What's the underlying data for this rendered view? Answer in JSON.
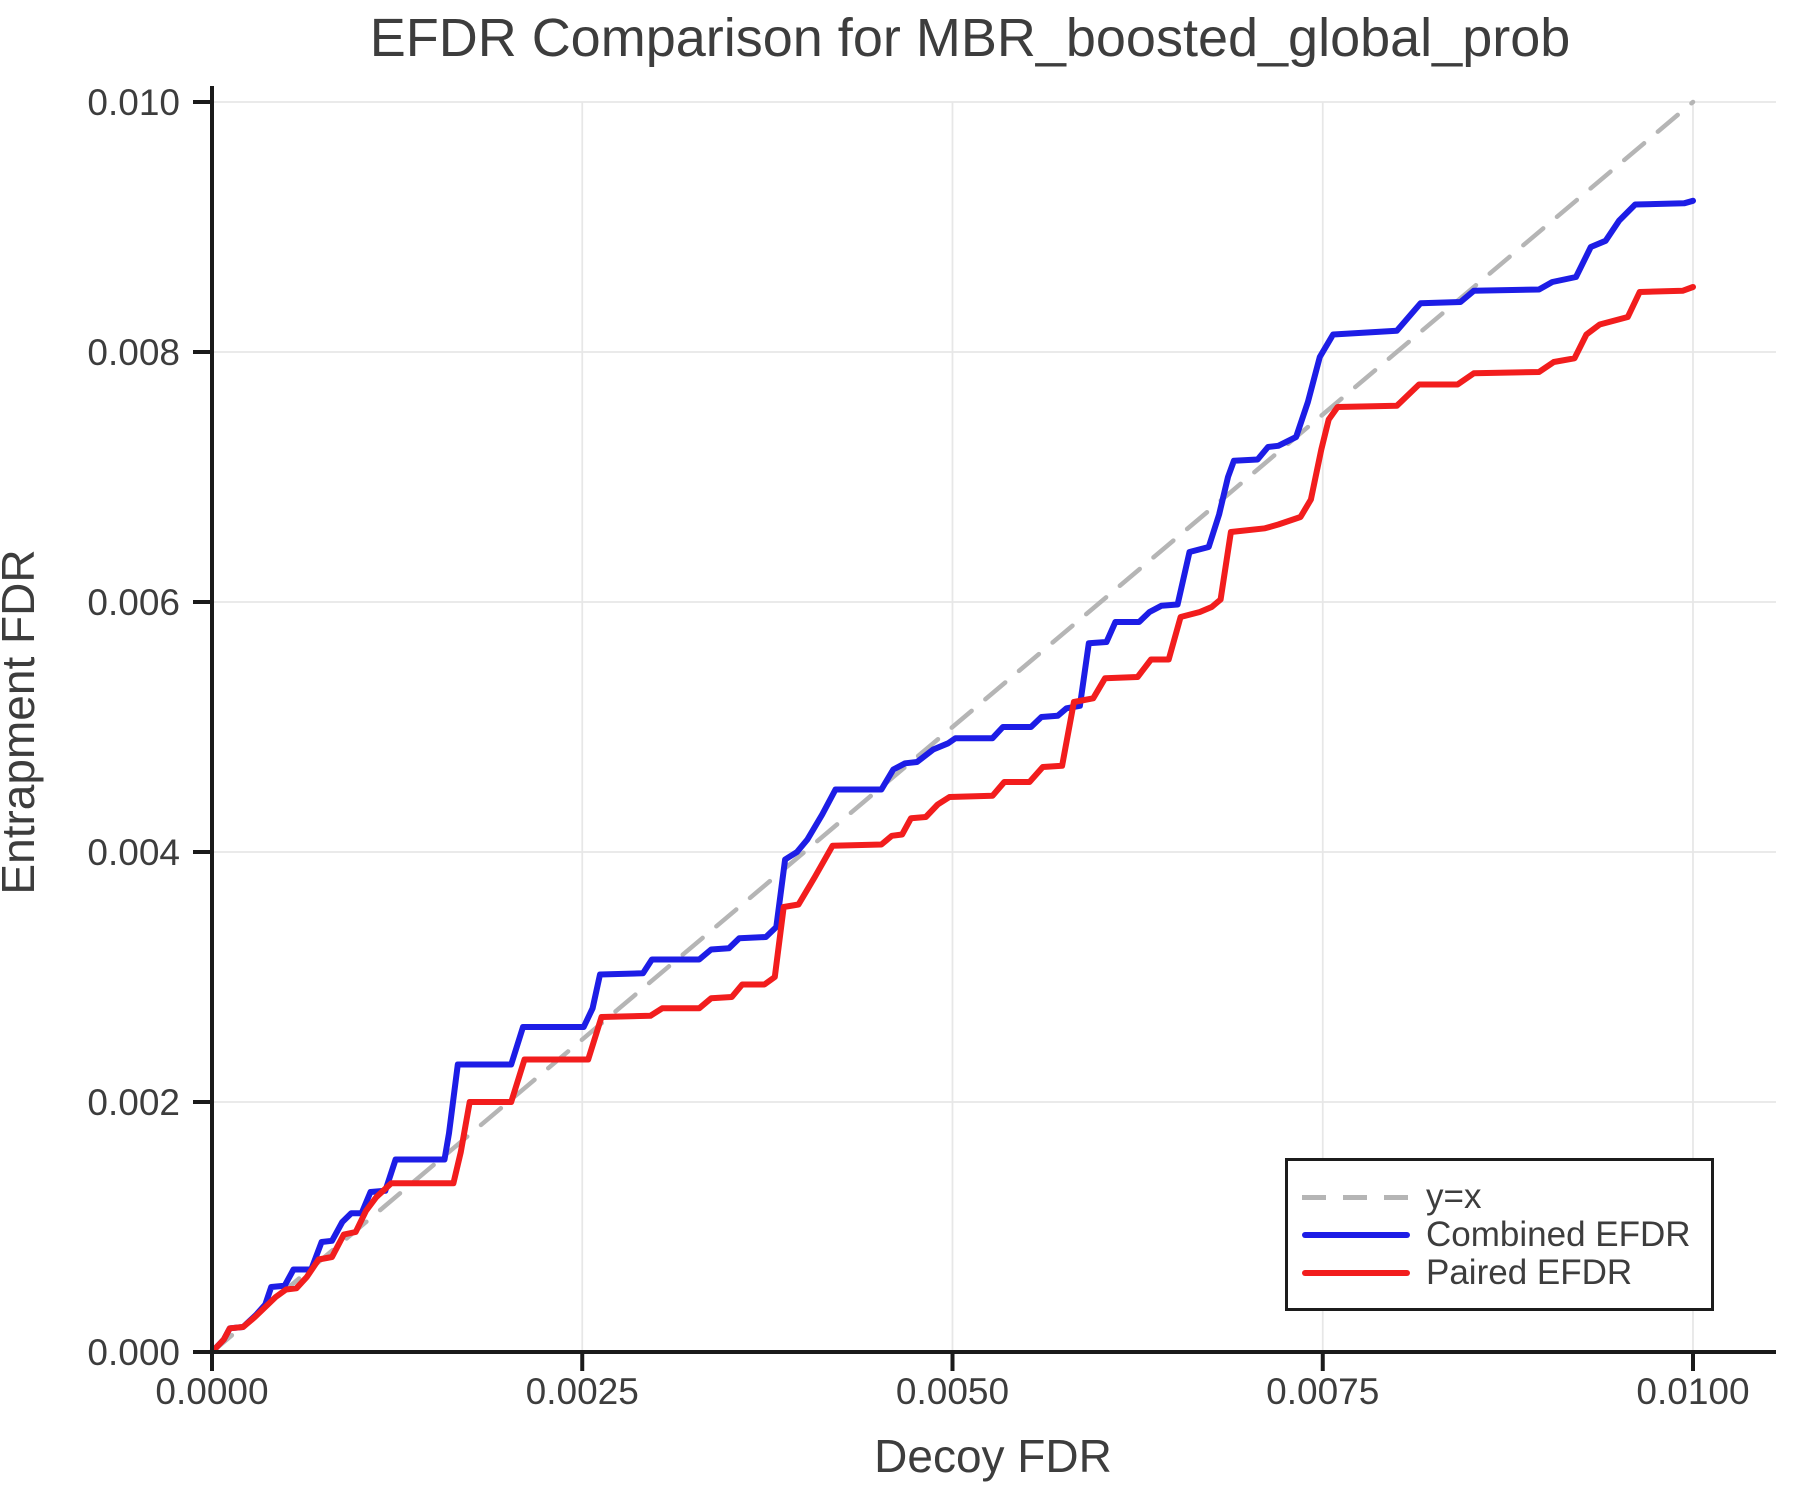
{
  "title": "EFDR Comparison for MBR_boosted_global_prob",
  "colors": {
    "combined": "#1d1de6",
    "paired": "#f21d1d",
    "identity": "#b5b5b5",
    "grid": "#e7e7e7",
    "spine": "#1a1a1a",
    "text": "#3d3d3d"
  },
  "chart_data": {
    "type": "line",
    "title": "EFDR Comparison for MBR_boosted_global_prob",
    "xlabel": "Decoy FDR",
    "ylabel": "Entrapment FDR",
    "xlim": [
      0,
      0.01
    ],
    "ylim": [
      0,
      0.01
    ],
    "grid": true,
    "legend_position": "lower right",
    "x_ticks": {
      "values": [
        0,
        0.0025,
        0.005,
        0.0075,
        0.01
      ],
      "labels": [
        "0.0000",
        "0.0025",
        "0.0050",
        "0.0075",
        "0.0100"
      ]
    },
    "y_ticks": {
      "values": [
        0,
        0.002,
        0.004,
        0.006,
        0.008,
        0.01
      ],
      "labels": [
        "0.000",
        "0.002",
        "0.004",
        "0.006",
        "0.008",
        "0.010"
      ]
    },
    "series": [
      {
        "name": "y=x",
        "color": "#b5b5b5",
        "style": "dashed",
        "points": [
          [
            0,
            0
          ],
          [
            0.01,
            0.01
          ]
        ]
      },
      {
        "name": "Combined EFDR",
        "color": "#1d1de6",
        "style": "solid",
        "points": [
          [
            0,
            0
          ],
          [
            8e-05,
            0.0001
          ],
          [
            0.00012,
            0.00019
          ],
          [
            0.00021,
            0.0002
          ],
          [
            0.0003,
            0.0003
          ],
          [
            0.00036,
            0.00038
          ],
          [
            0.0004,
            0.00052
          ],
          [
            0.00049,
            0.00053
          ],
          [
            0.00055,
            0.00066
          ],
          [
            0.00067,
            0.00066
          ],
          [
            0.00074,
            0.00088
          ],
          [
            0.00081,
            0.00089
          ],
          [
            0.00088,
            0.00104
          ],
          [
            0.00094,
            0.00111
          ],
          [
            0.00101,
            0.00111
          ],
          [
            0.00107,
            0.00128
          ],
          [
            0.00117,
            0.00129
          ],
          [
            0.00124,
            0.00154
          ],
          [
            0.00157,
            0.00154
          ],
          [
            0.0016,
            0.00175
          ],
          [
            0.00166,
            0.0023
          ],
          [
            0.00202,
            0.0023
          ],
          [
            0.0021,
            0.0026
          ],
          [
            0.00251,
            0.0026
          ],
          [
            0.00257,
            0.00275
          ],
          [
            0.00262,
            0.00302
          ],
          [
            0.00291,
            0.00303
          ],
          [
            0.00297,
            0.00314
          ],
          [
            0.00329,
            0.00314
          ],
          [
            0.00337,
            0.00322
          ],
          [
            0.00349,
            0.00323
          ],
          [
            0.00356,
            0.00331
          ],
          [
            0.00374,
            0.00332
          ],
          [
            0.00381,
            0.0034
          ],
          [
            0.00387,
            0.00394
          ],
          [
            0.00395,
            0.004
          ],
          [
            0.00402,
            0.0041
          ],
          [
            0.00412,
            0.0043
          ],
          [
            0.00421,
            0.0045
          ],
          [
            0.00452,
            0.0045
          ],
          [
            0.0046,
            0.00466
          ],
          [
            0.00468,
            0.00471
          ],
          [
            0.00476,
            0.00472
          ],
          [
            0.00487,
            0.00482
          ],
          [
            0.00497,
            0.00487
          ],
          [
            0.00502,
            0.00491
          ],
          [
            0.00527,
            0.00491
          ],
          [
            0.00534,
            0.005
          ],
          [
            0.00553,
            0.005
          ],
          [
            0.0056,
            0.00508
          ],
          [
            0.00571,
            0.00509
          ],
          [
            0.00577,
            0.00515
          ],
          [
            0.00586,
            0.00517
          ],
          [
            0.00592,
            0.00567
          ],
          [
            0.00604,
            0.00568
          ],
          [
            0.0061,
            0.00584
          ],
          [
            0.00626,
            0.00584
          ],
          [
            0.00633,
            0.00592
          ],
          [
            0.00641,
            0.00597
          ],
          [
            0.00652,
            0.00598
          ],
          [
            0.0066,
            0.0064
          ],
          [
            0.00673,
            0.00644
          ],
          [
            0.0068,
            0.0067
          ],
          [
            0.00686,
            0.007
          ],
          [
            0.0069,
            0.00713
          ],
          [
            0.00706,
            0.00714
          ],
          [
            0.00713,
            0.00724
          ],
          [
            0.0072,
            0.00725
          ],
          [
            0.00732,
            0.00732
          ],
          [
            0.0074,
            0.0076
          ],
          [
            0.00748,
            0.00796
          ],
          [
            0.00757,
            0.00814
          ],
          [
            0.008,
            0.00817
          ],
          [
            0.00816,
            0.00839
          ],
          [
            0.00843,
            0.0084
          ],
          [
            0.00852,
            0.00849
          ],
          [
            0.00896,
            0.0085
          ],
          [
            0.00905,
            0.00856
          ],
          [
            0.00913,
            0.00858
          ],
          [
            0.00921,
            0.0086
          ],
          [
            0.00931,
            0.00884
          ],
          [
            0.00941,
            0.00889
          ],
          [
            0.0095,
            0.00905
          ],
          [
            0.00961,
            0.00918
          ],
          [
            0.00994,
            0.00919
          ],
          [
            0.01,
            0.00921
          ]
        ]
      },
      {
        "name": "Paired EFDR",
        "color": "#f21d1d",
        "style": "solid",
        "points": [
          [
            0,
            0
          ],
          [
            8e-05,
            0.0001
          ],
          [
            0.00012,
            0.00019
          ],
          [
            0.00021,
            0.0002
          ],
          [
            0.00029,
            0.00028
          ],
          [
            0.00036,
            0.00036
          ],
          [
            0.00043,
            0.00044
          ],
          [
            0.0005,
            0.0005
          ],
          [
            0.00057,
            0.00051
          ],
          [
            0.00064,
            0.0006
          ],
          [
            0.00072,
            0.00074
          ],
          [
            0.00081,
            0.00076
          ],
          [
            0.00089,
            0.00094
          ],
          [
            0.00097,
            0.00096
          ],
          [
            0.00104,
            0.00113
          ],
          [
            0.00111,
            0.00124
          ],
          [
            0.00121,
            0.00135
          ],
          [
            0.00163,
            0.00135
          ],
          [
            0.00168,
            0.0016
          ],
          [
            0.00174,
            0.002
          ],
          [
            0.00202,
            0.002
          ],
          [
            0.00211,
            0.00234
          ],
          [
            0.00254,
            0.00234
          ],
          [
            0.00263,
            0.00268
          ],
          [
            0.00296,
            0.00269
          ],
          [
            0.00304,
            0.00275
          ],
          [
            0.00329,
            0.00275
          ],
          [
            0.00337,
            0.00283
          ],
          [
            0.00351,
            0.00284
          ],
          [
            0.00358,
            0.00294
          ],
          [
            0.00373,
            0.00294
          ],
          [
            0.0038,
            0.003
          ],
          [
            0.00386,
            0.00356
          ],
          [
            0.00396,
            0.00358
          ],
          [
            0.00407,
            0.0038
          ],
          [
            0.00419,
            0.00405
          ],
          [
            0.00452,
            0.00406
          ],
          [
            0.00459,
            0.00413
          ],
          [
            0.00466,
            0.00414
          ],
          [
            0.00472,
            0.00427
          ],
          [
            0.00482,
            0.00428
          ],
          [
            0.0049,
            0.00438
          ],
          [
            0.00498,
            0.00444
          ],
          [
            0.00527,
            0.00445
          ],
          [
            0.00535,
            0.00456
          ],
          [
            0.00552,
            0.00456
          ],
          [
            0.00561,
            0.00468
          ],
          [
            0.00574,
            0.00469
          ],
          [
            0.00582,
            0.0052
          ],
          [
            0.00595,
            0.00523
          ],
          [
            0.00603,
            0.00539
          ],
          [
            0.00625,
            0.0054
          ],
          [
            0.00634,
            0.00554
          ],
          [
            0.00646,
            0.00554
          ],
          [
            0.00654,
            0.00588
          ],
          [
            0.00667,
            0.00592
          ],
          [
            0.00675,
            0.00596
          ],
          [
            0.00681,
            0.00602
          ],
          [
            0.00688,
            0.00656
          ],
          [
            0.00711,
            0.00659
          ],
          [
            0.0072,
            0.00662
          ],
          [
            0.00735,
            0.00668
          ],
          [
            0.00742,
            0.00682
          ],
          [
            0.00749,
            0.00722
          ],
          [
            0.00754,
            0.00746
          ],
          [
            0.0076,
            0.00756
          ],
          [
            0.008,
            0.00757
          ],
          [
            0.00815,
            0.00774
          ],
          [
            0.00841,
            0.00774
          ],
          [
            0.00852,
            0.00783
          ],
          [
            0.00896,
            0.00784
          ],
          [
            0.00906,
            0.00792
          ],
          [
            0.0092,
            0.00795
          ],
          [
            0.00928,
            0.00814
          ],
          [
            0.00937,
            0.00822
          ],
          [
            0.00956,
            0.00828
          ],
          [
            0.00964,
            0.00848
          ],
          [
            0.00993,
            0.00849
          ],
          [
            0.01,
            0.00852
          ]
        ]
      }
    ]
  },
  "legend": {
    "items": [
      {
        "label": "y=x"
      },
      {
        "label": "Combined EFDR"
      },
      {
        "label": "Paired EFDR"
      }
    ]
  }
}
